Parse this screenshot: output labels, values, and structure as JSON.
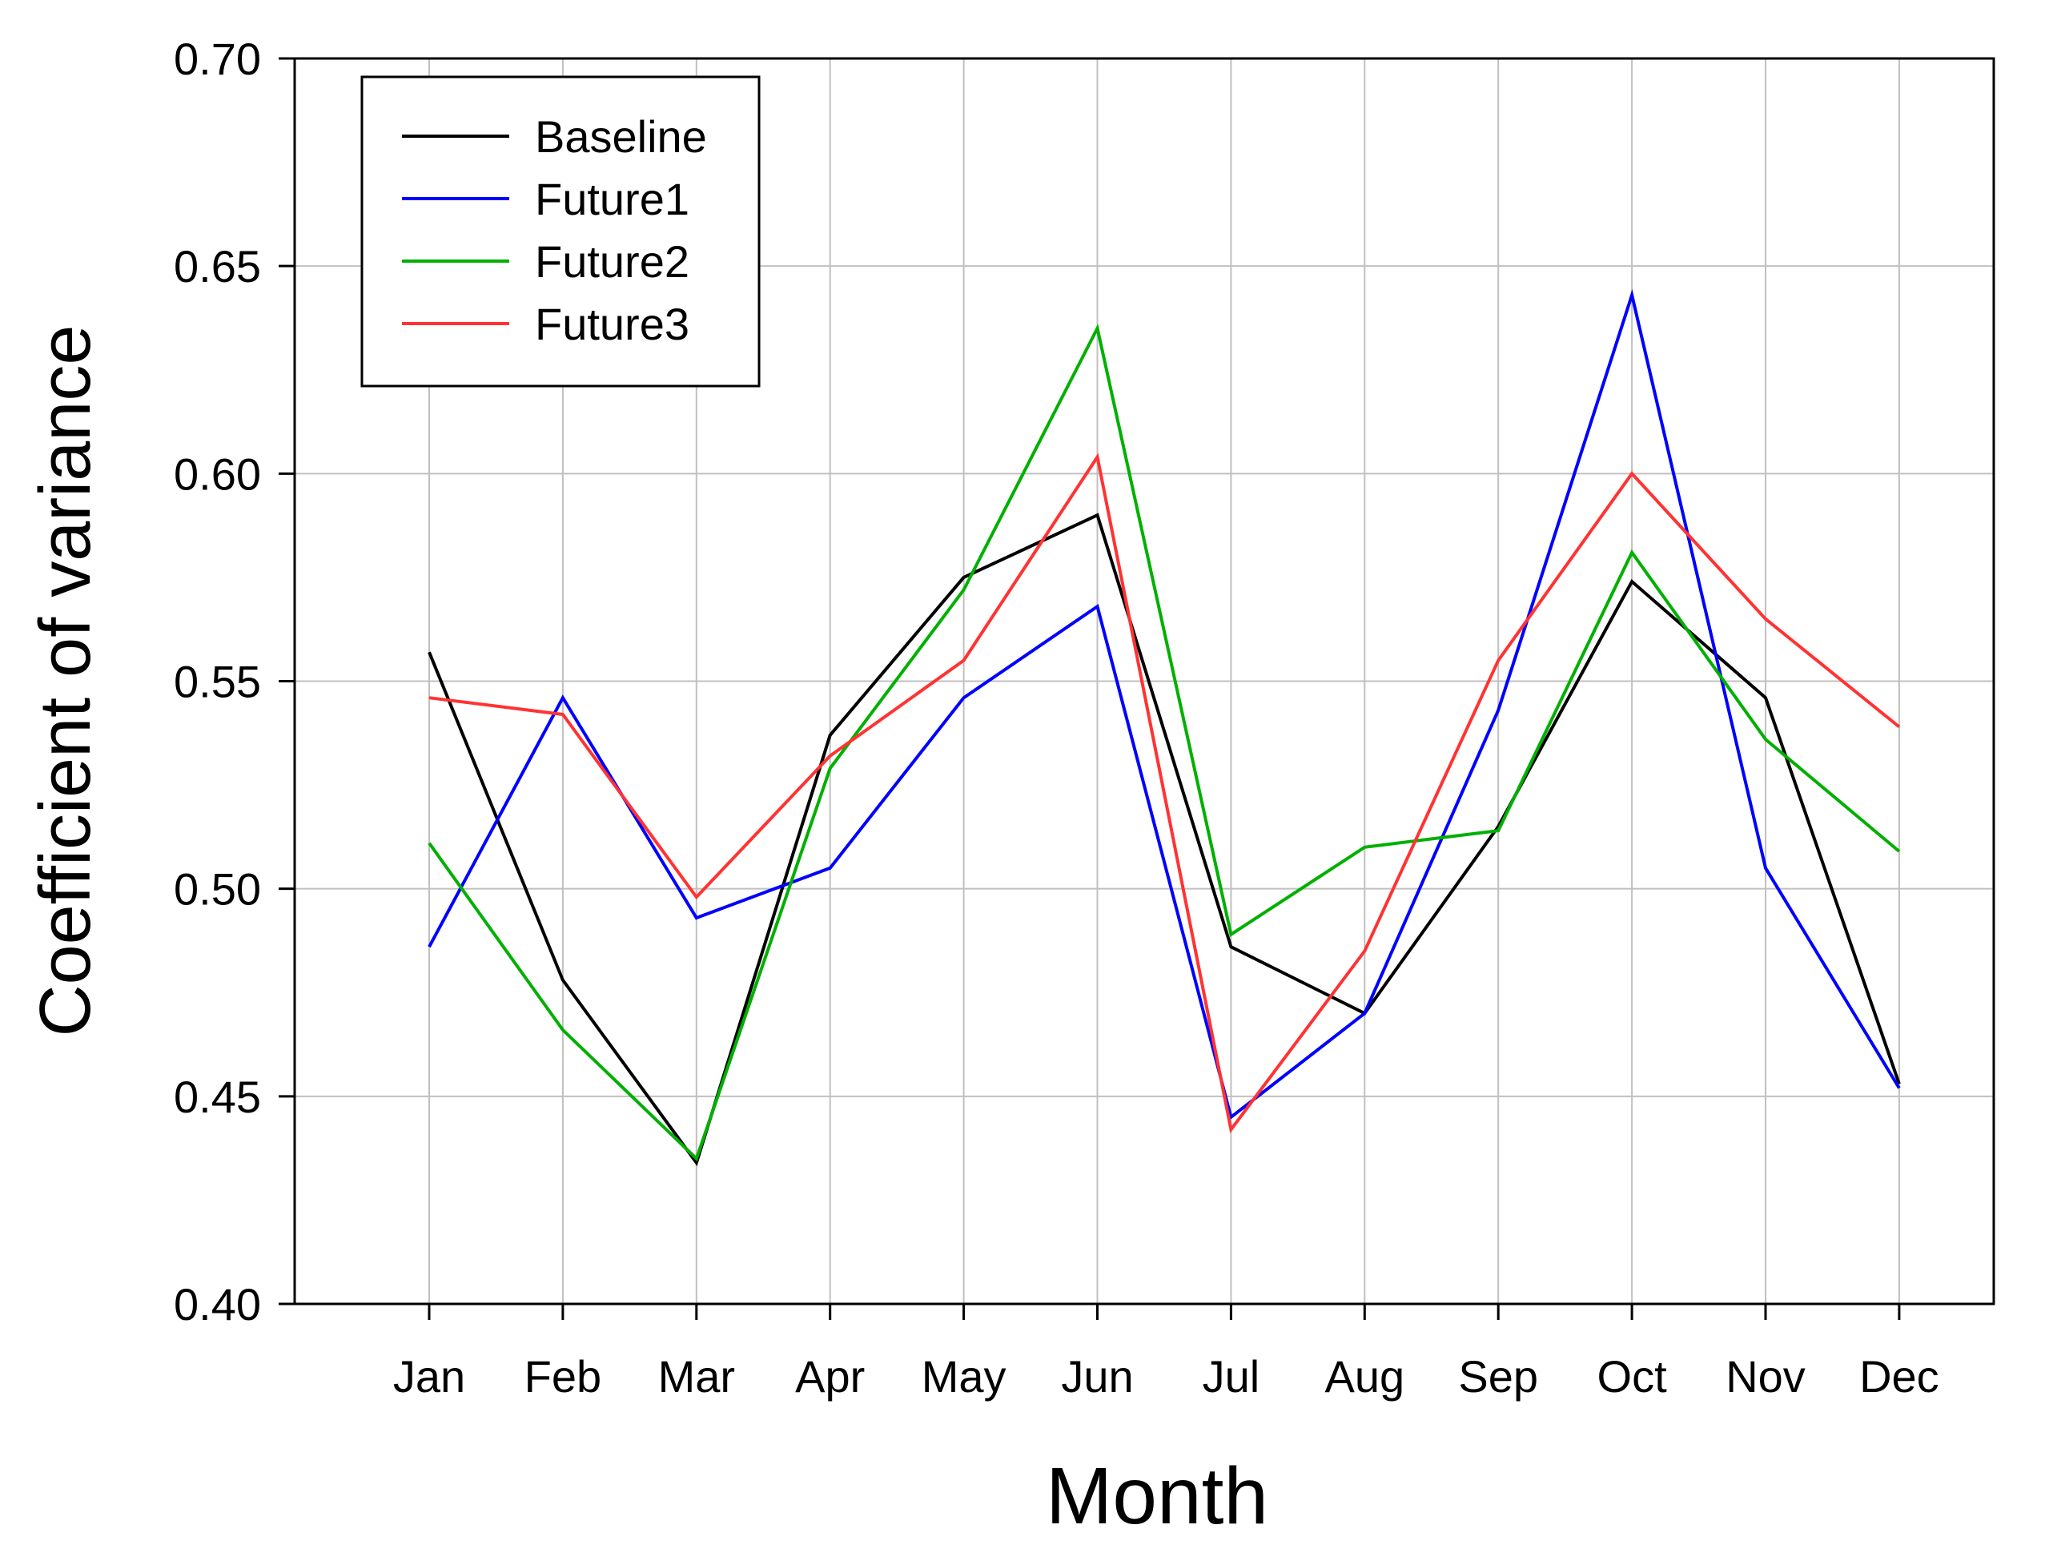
{
  "chart_data": {
    "type": "line",
    "title": "",
    "xlabel": "Month",
    "ylabel": "Coefficient of variance",
    "ylim": [
      0.4,
      0.7
    ],
    "yticks": [
      "0.40",
      "0.45",
      "0.50",
      "0.55",
      "0.60",
      "0.65",
      "0.70"
    ],
    "ytick_values": [
      0.4,
      0.45,
      0.5,
      0.55,
      0.6,
      0.65,
      0.7
    ],
    "categories": [
      "Jan",
      "Feb",
      "Mar",
      "Apr",
      "May",
      "Jun",
      "Jul",
      "Aug",
      "Sep",
      "Oct",
      "Nov",
      "Dec"
    ],
    "grid": true,
    "legend_position": "top-left",
    "series": [
      {
        "name": "Baseline",
        "color": "#000000",
        "values": [
          0.557,
          0.478,
          0.434,
          0.537,
          0.575,
          0.59,
          0.486,
          0.47,
          0.515,
          0.574,
          0.546,
          0.453
        ]
      },
      {
        "name": "Future1",
        "color": "#0000ff",
        "values": [
          0.486,
          0.546,
          0.493,
          0.505,
          0.546,
          0.568,
          0.445,
          0.47,
          0.543,
          0.643,
          0.505,
          0.452
        ]
      },
      {
        "name": "Future2",
        "color": "#00b000",
        "values": [
          0.511,
          0.466,
          0.435,
          0.529,
          0.572,
          0.635,
          0.489,
          0.51,
          0.514,
          0.581,
          0.536,
          0.509
        ]
      },
      {
        "name": "Future3",
        "color": "#ff3333",
        "values": [
          0.546,
          0.542,
          0.498,
          0.532,
          0.555,
          0.604,
          0.442,
          0.485,
          0.555,
          0.6,
          0.565,
          0.539
        ]
      }
    ]
  }
}
